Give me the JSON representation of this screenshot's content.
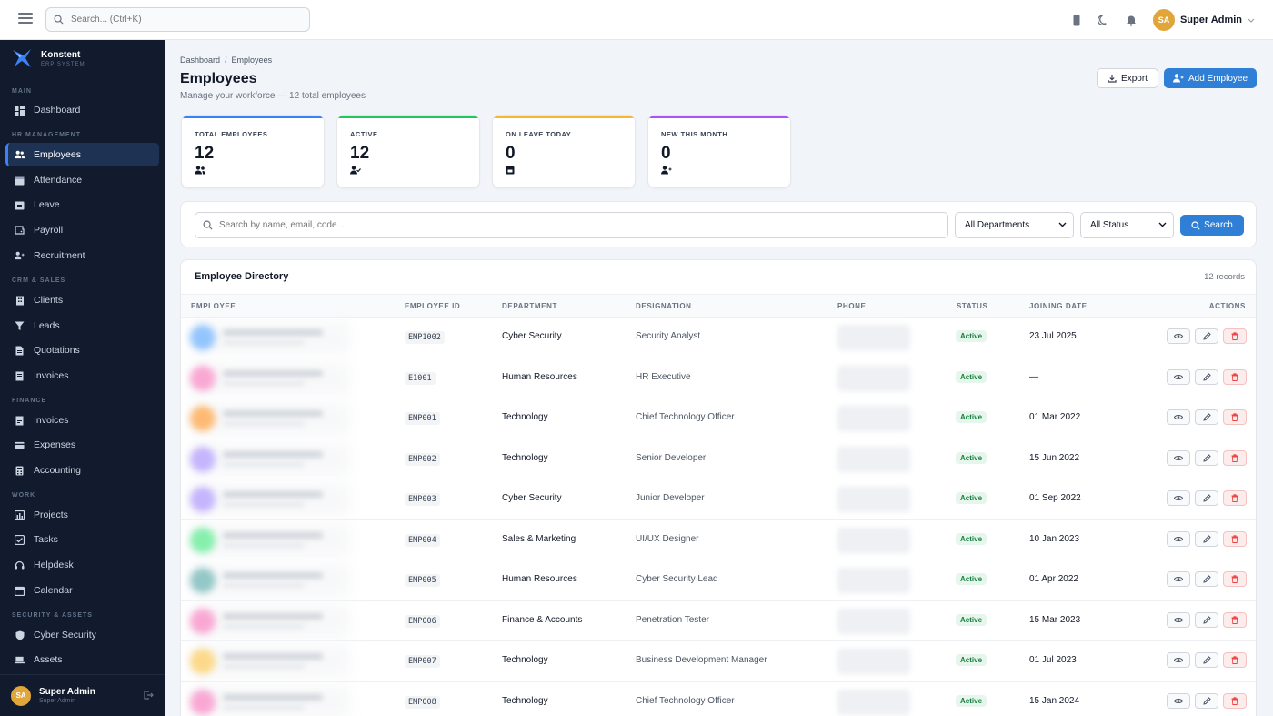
{
  "topbar": {
    "search_placeholder": "Search... (Ctrl+K)",
    "user": {
      "initials": "SA",
      "name": "Super Admin"
    }
  },
  "sidebar": {
    "brand": {
      "name": "Konstent",
      "tagline": "ERP SYSTEM"
    },
    "sections": {
      "main": "MAIN",
      "hr": "HR MANAGEMENT",
      "crm": "CRM & SALES",
      "finance": "FINANCE",
      "work": "WORK",
      "security": "SECURITY & ASSETS"
    },
    "items": {
      "dashboard": "Dashboard",
      "employees": "Employees",
      "attendance": "Attendance",
      "leave": "Leave",
      "payroll": "Payroll",
      "recruitment": "Recruitment",
      "clients": "Clients",
      "leads": "Leads",
      "quotations": "Quotations",
      "invoices_crm": "Invoices",
      "invoices_fin": "Invoices",
      "expenses": "Expenses",
      "accounting": "Accounting",
      "projects": "Projects",
      "tasks": "Tasks",
      "helpdesk": "Helpdesk",
      "calendar": "Calendar",
      "cyber_security": "Cyber Security",
      "assets": "Assets"
    },
    "footer": {
      "initials": "SA",
      "name": "Super Admin",
      "role": "Super Admin"
    }
  },
  "page": {
    "breadcrumb": [
      "Dashboard",
      "Employees"
    ],
    "breadcrumb_sep": "/",
    "title": "Employees",
    "subtitle": "Manage your workforce — 12 total employees",
    "export_label": "Export",
    "add_label": "Add Employee"
  },
  "stats": [
    {
      "label": "TOTAL EMPLOYEES",
      "value": "12",
      "color": "#3b82f6",
      "icon": "users-icon"
    },
    {
      "label": "ACTIVE",
      "value": "12",
      "color": "#22c55e",
      "icon": "user-check-icon"
    },
    {
      "label": "ON LEAVE TODAY",
      "value": "0",
      "color": "#f5b82e",
      "icon": "calendar-icon"
    },
    {
      "label": "NEW THIS MONTH",
      "value": "0",
      "color": "#a855f7",
      "icon": "user-plus-icon"
    }
  ],
  "filters": {
    "search_placeholder": "Search by name, email, code...",
    "department": "All Departments",
    "status": "All Status",
    "search_button": "Search"
  },
  "table": {
    "title": "Employee Directory",
    "count": "12 records",
    "columns": [
      "EMPLOYEE",
      "EMPLOYEE ID",
      "DEPARTMENT",
      "DESIGNATION",
      "PHONE",
      "STATUS",
      "JOINING DATE",
      "ACTIONS"
    ],
    "rows": [
      {
        "avatar_color": "#93c5fd",
        "id": "EMP1002",
        "department": "Cyber Security",
        "designation": "Security Analyst",
        "status": "Active",
        "joining": "23 Jul 2025"
      },
      {
        "avatar_color": "#f9a8d4",
        "id": "E1001",
        "department": "Human Resources",
        "designation": "HR Executive",
        "status": "Active",
        "joining": "—"
      },
      {
        "avatar_color": "#fdba74",
        "id": "EMP001",
        "department": "Technology",
        "designation": "Chief Technology Officer",
        "status": "Active",
        "joining": "01 Mar 2022"
      },
      {
        "avatar_color": "#c4b5fd",
        "id": "EMP002",
        "department": "Technology",
        "designation": "Senior Developer",
        "status": "Active",
        "joining": "15 Jun 2022"
      },
      {
        "avatar_color": "#c4b5fd",
        "id": "EMP003",
        "department": "Cyber Security",
        "designation": "Junior Developer",
        "status": "Active",
        "joining": "01 Sep 2022"
      },
      {
        "avatar_color": "#86efac",
        "id": "EMP004",
        "department": "Sales & Marketing",
        "designation": "UI/UX Designer",
        "status": "Active",
        "joining": "10 Jan 2023"
      },
      {
        "avatar_color": "#94c7c7",
        "id": "EMP005",
        "department": "Human Resources",
        "designation": "Cyber Security Lead",
        "status": "Active",
        "joining": "01 Apr 2022"
      },
      {
        "avatar_color": "#f9a8d4",
        "id": "EMP006",
        "department": "Finance & Accounts",
        "designation": "Penetration Tester",
        "status": "Active",
        "joining": "15 Mar 2023"
      },
      {
        "avatar_color": "#fcd98a",
        "id": "EMP007",
        "department": "Technology",
        "designation": "Business Development Manager",
        "status": "Active",
        "joining": "01 Jul 2023"
      },
      {
        "avatar_color": "#f9a8d4",
        "id": "EMP008",
        "department": "Technology",
        "designation": "Chief Technology Officer",
        "status": "Active",
        "joining": "15 Jan 2024"
      }
    ]
  }
}
